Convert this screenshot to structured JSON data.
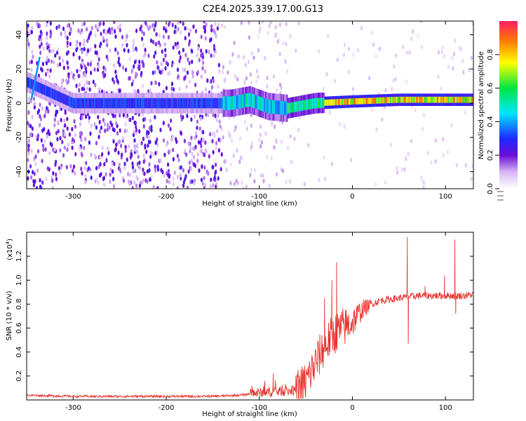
{
  "title": "C2E4.2025.339.17.00.G13",
  "chart_data": [
    {
      "type": "heatmap",
      "xlabel": "Height of straight line (km)",
      "ylabel": "Frequency (Hz)",
      "xlim": [
        -350,
        130
      ],
      "ylim": [
        -50,
        48
      ],
      "xticks": [
        -300,
        -200,
        -100,
        0,
        100
      ],
      "yticks": [
        -40,
        -20,
        0,
        20,
        40
      ],
      "colorbar": {
        "label": "Normalized spectral amplitude",
        "range": [
          0,
          1
        ],
        "ticks": [
          "0.0",
          "0.2",
          "0.4",
          "0.6",
          "0.8"
        ]
      },
      "regions": [
        {
          "x": [
            -350,
            -140
          ],
          "pattern": "diffuse noise across all frequencies, amplitude ~0.1-0.25"
        },
        {
          "x": [
            -140,
            -70
          ],
          "pattern": "sparse noise, signal band near 0 Hz, amplitude ~0.3-0.5"
        },
        {
          "x": [
            -70,
            130
          ],
          "pattern": "narrow signal band at ~1-3 Hz, amplitude ~0.6-1.0"
        }
      ],
      "signal_track": [
        {
          "x": -340,
          "f": 10
        },
        {
          "x": -300,
          "f": 0
        },
        {
          "x": -250,
          "f": 0
        },
        {
          "x": -200,
          "f": 0
        },
        {
          "x": -130,
          "f": 0
        },
        {
          "x": -110,
          "f": 2
        },
        {
          "x": -90,
          "f": -2
        },
        {
          "x": -70,
          "f": -3
        },
        {
          "x": -40,
          "f": 0
        },
        {
          "x": 0,
          "f": 1
        },
        {
          "x": 50,
          "f": 2
        },
        {
          "x": 100,
          "f": 2
        },
        {
          "x": 130,
          "f": 2
        }
      ]
    },
    {
      "type": "line",
      "xlabel": "Height of straight line (km)",
      "ylabel": "SNR (10 * v/v)",
      "scale_label": "(x10",
      "scale_exp": "4",
      "scale_close": ")",
      "xlim": [
        -350,
        130
      ],
      "ylim": [
        0,
        1.4
      ],
      "xticks": [
        -300,
        -200,
        -100,
        0,
        100
      ],
      "yticks": [
        "0.2",
        "0.4",
        "0.6",
        "0.8",
        "1.0",
        "1.2"
      ],
      "series": [
        {
          "color": "#e8322d",
          "x": [
            -350,
            -300,
            -250,
            -200,
            -150,
            -120,
            -100,
            -80,
            -60,
            -50,
            -40,
            -30,
            -20,
            -10,
            0,
            10,
            20,
            30,
            40,
            50,
            60,
            70,
            80,
            90,
            100,
            110,
            120,
            130
          ],
          "y": [
            0.04,
            0.03,
            0.03,
            0.03,
            0.03,
            0.04,
            0.06,
            0.07,
            0.08,
            0.15,
            0.3,
            0.45,
            0.55,
            0.6,
            0.65,
            0.75,
            0.8,
            0.83,
            0.84,
            0.85,
            0.86,
            0.87,
            0.87,
            0.87,
            0.87,
            0.87,
            0.87,
            0.88
          ]
        }
      ],
      "spikes": [
        {
          "x": 59,
          "y": 1.36
        },
        {
          "x": 60,
          "y": 0.47
        },
        {
          "x": 110,
          "y": 1.34
        },
        {
          "x": 111,
          "y": 0.72
        },
        {
          "x": 99,
          "y": 1.04
        },
        {
          "x": 78,
          "y": 0.95
        },
        {
          "x": -17,
          "y": 1.15
        },
        {
          "x": -22,
          "y": 1.0
        },
        {
          "x": -30,
          "y": 0.85
        },
        {
          "x": -85,
          "y": 0.22
        },
        {
          "x": -94,
          "y": 0.16
        }
      ]
    }
  ]
}
